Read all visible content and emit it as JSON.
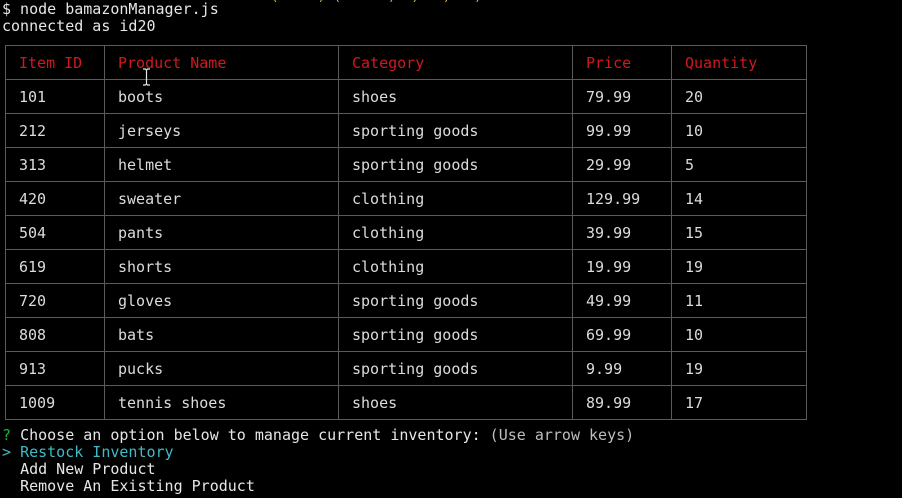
{
  "terminal": {
    "cutoff_text": "' (     ) ( '    )  ) ' ) ' )",
    "command_line": "$ node bamazonManager.js",
    "connected_line": "connected as id20"
  },
  "table": {
    "columns": [
      "Item ID",
      "Product Name",
      "Category",
      "Price",
      "Quantity"
    ],
    "rows": [
      [
        "101",
        "boots",
        "shoes",
        "79.99",
        "20"
      ],
      [
        "212",
        "jerseys",
        "sporting goods",
        "99.99",
        "10"
      ],
      [
        "313",
        "helmet",
        "sporting goods",
        "29.99",
        "5"
      ],
      [
        "420",
        "sweater",
        "clothing",
        "129.99",
        "14"
      ],
      [
        "504",
        "pants",
        "clothing",
        "39.99",
        "15"
      ],
      [
        "619",
        "shorts",
        "clothing",
        "19.99",
        "19"
      ],
      [
        "720",
        "gloves",
        "sporting goods",
        "49.99",
        "11"
      ],
      [
        "808",
        "bats",
        "sporting goods",
        "69.99",
        "10"
      ],
      [
        "913",
        "pucks",
        "sporting goods",
        "9.99",
        "19"
      ],
      [
        "1009",
        "tennis shoes",
        "shoes",
        "89.99",
        "17"
      ]
    ]
  },
  "prompt": {
    "marker": "?",
    "question": "Choose an option below to manage current inventory:",
    "hint": "(Use arrow keys)",
    "pointer": ">",
    "options": [
      "Restock Inventory",
      "Add New Product",
      "Remove An Existing Product"
    ],
    "selected_index": 0
  },
  "colors": {
    "background": "#000000",
    "text": "#e6e6e6",
    "header_red": "#d0191f",
    "question_green": "#19b13e",
    "selected_cyan": "#3fbac6",
    "table_border": "#5a5a5a"
  },
  "icons": {
    "mouse_cursor": "i-beam-cursor-icon"
  }
}
